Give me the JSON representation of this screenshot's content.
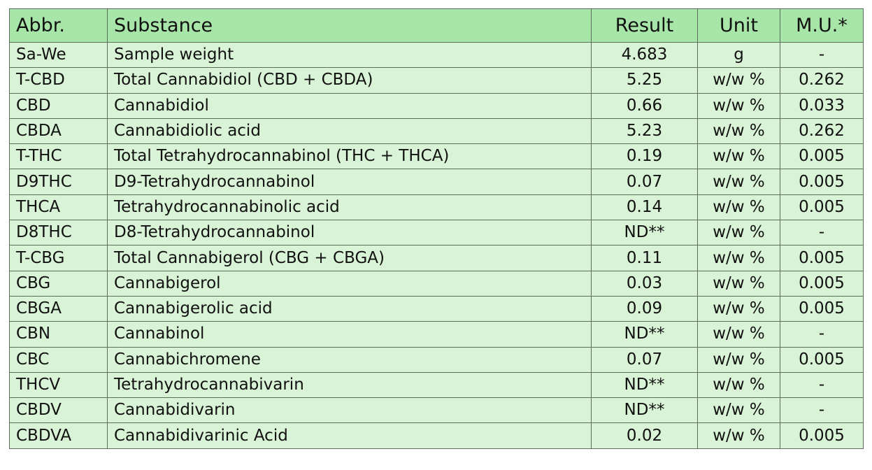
{
  "headers": {
    "abbr": "Abbr.",
    "substance": "Substance",
    "result": "Result",
    "unit": "Unit",
    "mu": "M.U.*"
  },
  "rows": [
    {
      "abbr": "Sa-We",
      "substance": "Sample weight",
      "result": "4.683",
      "unit": "g",
      "mu": "-"
    },
    {
      "abbr": "T-CBD",
      "substance": "Total Cannabidiol (CBD + CBDA)",
      "result": "5.25",
      "unit": "w/w %",
      "mu": "0.262"
    },
    {
      "abbr": "CBD",
      "substance": "Cannabidiol",
      "result": "0.66",
      "unit": "w/w %",
      "mu": "0.033"
    },
    {
      "abbr": "CBDA",
      "substance": "Cannabidiolic acid",
      "result": "5.23",
      "unit": "w/w %",
      "mu": "0.262"
    },
    {
      "abbr": "T-THC",
      "substance": "Total Tetrahydrocannabinol (THC + THCA)",
      "result": "0.19",
      "unit": "w/w %",
      "mu": "0.005"
    },
    {
      "abbr": "D9THC",
      "substance": "D9-Tetrahydrocannabinol",
      "result": "0.07",
      "unit": "w/w %",
      "mu": "0.005"
    },
    {
      "abbr": "THCA",
      "substance": "Tetrahydrocannabinolic acid",
      "result": "0.14",
      "unit": "w/w %",
      "mu": "0.005"
    },
    {
      "abbr": "D8THC",
      "substance": "D8-Tetrahydrocannabinol",
      "result": "ND**",
      "unit": "w/w %",
      "mu": "-"
    },
    {
      "abbr": "T-CBG",
      "substance": "Total Cannabigerol (CBG + CBGA)",
      "result": "0.11",
      "unit": "w/w %",
      "mu": "0.005"
    },
    {
      "abbr": "CBG",
      "substance": "Cannabigerol",
      "result": "0.03",
      "unit": "w/w %",
      "mu": "0.005"
    },
    {
      "abbr": "CBGA",
      "substance": "Cannabigerolic acid",
      "result": "0.09",
      "unit": "w/w %",
      "mu": "0.005"
    },
    {
      "abbr": "CBN",
      "substance": "Cannabinol",
      "result": "ND**",
      "unit": "w/w %",
      "mu": "-"
    },
    {
      "abbr": "CBC",
      "substance": "Cannabichromene",
      "result": "0.07",
      "unit": "w/w %",
      "mu": "0.005"
    },
    {
      "abbr": "THCV",
      "substance": "Tetrahydrocannabivarin",
      "result": "ND**",
      "unit": "w/w %",
      "mu": "-"
    },
    {
      "abbr": "CBDV",
      "substance": "Cannabidivarin",
      "result": "ND**",
      "unit": "w/w %",
      "mu": "-"
    },
    {
      "abbr": "CBDVA",
      "substance": "Cannabidivarinic Acid",
      "result": "0.02",
      "unit": "w/w %",
      "mu": "0.005"
    }
  ],
  "colors": {
    "header_bg": "#a8e5a8",
    "row_bg": "#d9f3d6",
    "border": "#5d6b5d"
  }
}
